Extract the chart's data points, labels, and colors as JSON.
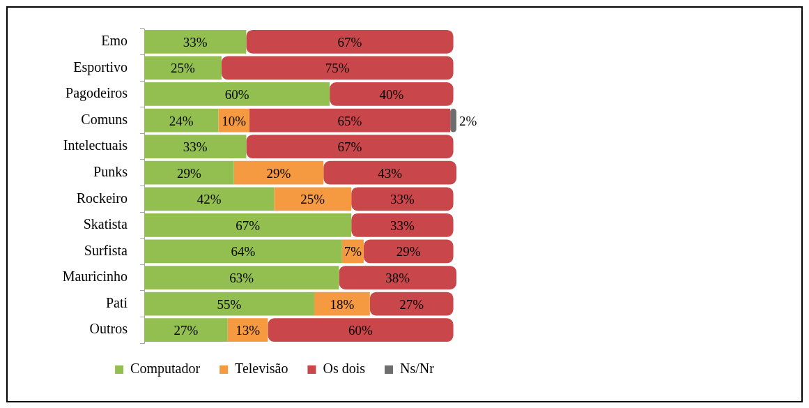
{
  "chart_data": {
    "type": "bar",
    "orientation": "horizontal",
    "stacked": true,
    "legend": "bottom",
    "tick_labels": "y",
    "categories": [
      "Emo",
      "Esportivo",
      "Pagodeiros",
      "Comuns",
      "Intelectuais",
      "Punks",
      "Rockeiro",
      "Skatista",
      "Surfista",
      "Mauricinho",
      "Pati",
      "Outros"
    ],
    "series": [
      {
        "name": "Computador",
        "color": "#92bf50",
        "values": [
          33,
          25,
          60,
          24,
          33,
          29,
          42,
          67,
          64,
          63,
          55,
          27
        ],
        "value_labels": [
          "33%",
          "25%",
          "60%",
          "24%",
          "33%",
          "29%",
          "42%",
          "67%",
          "64%",
          "63%",
          "55%",
          "27%"
        ]
      },
      {
        "name": "Televisão",
        "color": "#f59a40",
        "values": [
          0,
          0,
          0,
          10,
          0,
          29,
          25,
          0,
          7,
          0,
          18,
          13
        ],
        "value_labels": [
          null,
          null,
          null,
          "10%",
          null,
          "29%",
          "25%",
          null,
          "7%",
          null,
          "18%",
          "13%"
        ]
      },
      {
        "name": "Os dois",
        "color": "#c9474a",
        "values": [
          67,
          75,
          40,
          65,
          67,
          43,
          33,
          33,
          29,
          38,
          27,
          60
        ],
        "value_labels": [
          "67%",
          "75%",
          "40%",
          "65%",
          "67%",
          "43%",
          "33%",
          "33%",
          "29%",
          "38%",
          "27%",
          "60%"
        ]
      },
      {
        "name": "Ns/Nr",
        "color": "#6e6e6e",
        "values": [
          0,
          0,
          0,
          2,
          0,
          0,
          0,
          0,
          0,
          0,
          0,
          0
        ],
        "value_labels": [
          null,
          null,
          null,
          "2%",
          null,
          null,
          null,
          null,
          null,
          null,
          null,
          null
        ]
      }
    ]
  }
}
